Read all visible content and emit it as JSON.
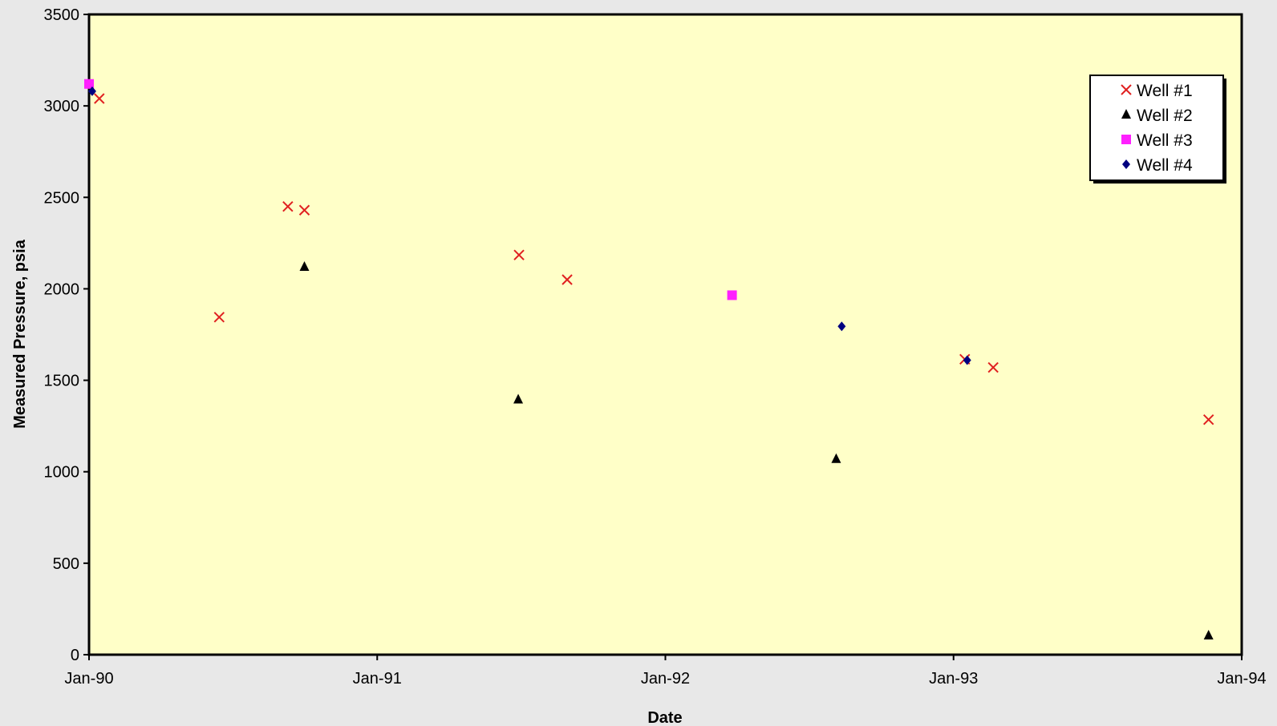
{
  "chart_data": {
    "type": "scatter",
    "title": "",
    "xlabel": "Date",
    "ylabel": "Measured Pressure, psia",
    "xlim": [
      "1990-01-01",
      "1994-01-01"
    ],
    "ylim": [
      0,
      3500
    ],
    "x_ticks": [
      "Jan-90",
      "Jan-91",
      "Jan-92",
      "Jan-93",
      "Jan-94"
    ],
    "y_ticks": [
      "0",
      "500",
      "1000",
      "1500",
      "2000",
      "2500",
      "3000",
      "3500"
    ],
    "grid": false,
    "legend_position": "top-right",
    "plot_background": "#ffffc8",
    "page_background": "#e8e8e8",
    "series": [
      {
        "name": "Well #1",
        "marker": "x",
        "color": "#e02020",
        "points": [
          {
            "x": "1990-01-14",
            "y": 3040
          },
          {
            "x": "1990-06-15",
            "y": 1845
          },
          {
            "x": "1990-09-10",
            "y": 2450
          },
          {
            "x": "1990-10-01",
            "y": 2430
          },
          {
            "x": "1991-06-30",
            "y": 2185
          },
          {
            "x": "1991-08-30",
            "y": 2050
          },
          {
            "x": "1993-01-15",
            "y": 1615
          },
          {
            "x": "1993-02-20",
            "y": 1570
          },
          {
            "x": "1993-11-20",
            "y": 1285
          }
        ]
      },
      {
        "name": "Well #2",
        "marker": "triangle",
        "color": "#000000",
        "points": [
          {
            "x": "1990-10-01",
            "y": 2120
          },
          {
            "x": "1991-06-29",
            "y": 1395
          },
          {
            "x": "1992-08-05",
            "y": 1070
          },
          {
            "x": "1993-11-20",
            "y": 105
          }
        ]
      },
      {
        "name": "Well #3",
        "marker": "square",
        "color": "#ff20ff",
        "points": [
          {
            "x": "1990-01-01",
            "y": 3120
          },
          {
            "x": "1992-03-26",
            "y": 1965
          }
        ]
      },
      {
        "name": "Well #4",
        "marker": "diamond",
        "color": "#000080",
        "points": [
          {
            "x": "1990-01-05",
            "y": 3080
          },
          {
            "x": "1992-08-12",
            "y": 1795
          },
          {
            "x": "1993-01-18",
            "y": 1610
          }
        ]
      }
    ]
  }
}
